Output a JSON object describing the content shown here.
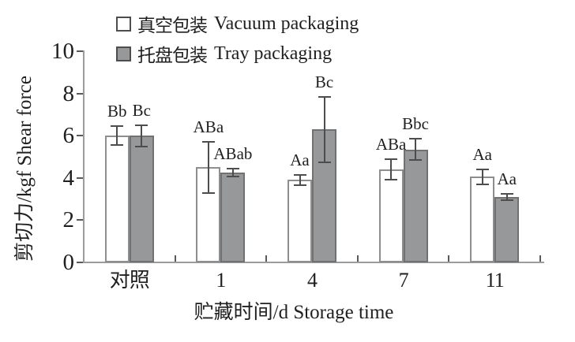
{
  "chart_data": {
    "type": "bar",
    "categories": [
      "对照",
      "1",
      "4",
      "7",
      "11"
    ],
    "series": [
      {
        "name_zh": "真空包装",
        "name_en": "Vacuum packaging",
        "key": "vacuum",
        "fill": "#ffffff",
        "border": "#8e8e8e",
        "values": [
          6.0,
          4.5,
          3.9,
          4.4,
          4.05
        ],
        "errors": [
          0.45,
          1.2,
          0.25,
          0.5,
          0.35
        ],
        "sig_labels": [
          "Bb",
          "ABa",
          "Aa",
          "ABa",
          "Aa"
        ]
      },
      {
        "name_zh": "托盘包装",
        "name_en": "Tray packaging",
        "key": "tray",
        "fill": "#96989a",
        "border": "#6f7173",
        "values": [
          6.0,
          4.25,
          6.3,
          5.35,
          3.1
        ],
        "errors": [
          0.5,
          0.2,
          1.55,
          0.5,
          0.15
        ],
        "sig_labels": [
          "Bc",
          "ABab",
          "Bc",
          "Bbc",
          "Aa"
        ]
      }
    ],
    "xlabel": "贮藏时间/d Storage time",
    "ylabel": "剪切力/kgf Shear force",
    "ylim": [
      0,
      10
    ],
    "yticks": [
      0,
      2,
      4,
      6,
      8,
      10
    ],
    "legend_position": "top-center",
    "grid": false,
    "error_bars": true
  },
  "colors": {
    "axis": "#9c9c9c",
    "tick": "#595959",
    "error_bar": "#4d4d4d",
    "text": "#1f1f1f",
    "background": "#ffffff"
  }
}
